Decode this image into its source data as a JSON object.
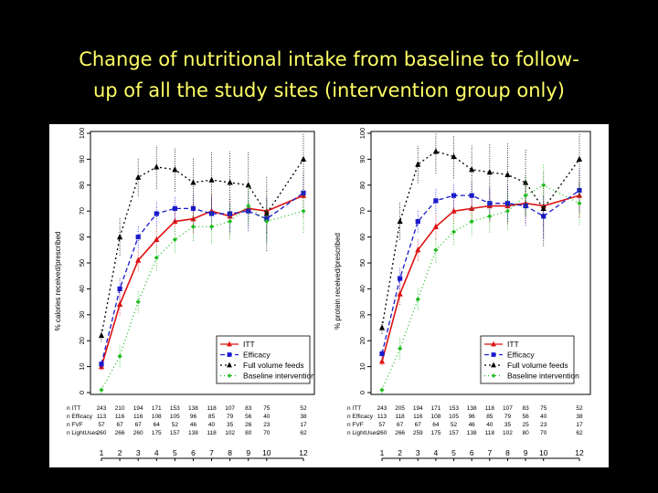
{
  "slide": {
    "title_line1": "Change of nutritional intake from baseline to follow-",
    "title_line2": "up of all the study sites (intervention group only)"
  },
  "colors": {
    "ITT": "#dd1111",
    "Efficacy": "#1a1acc",
    "Full volume feeds": "#000000",
    "Baseline intervention": "#22bb22"
  },
  "chart_data": [
    {
      "type": "line",
      "ylabel": "% calories received/prescribed",
      "ylim": [
        0,
        100
      ],
      "yticks": [
        "0",
        "10",
        "20",
        "30",
        "40",
        "50",
        "60",
        "70",
        "80",
        "90",
        "100"
      ],
      "x": [
        1,
        2,
        3,
        4,
        5,
        6,
        7,
        8,
        9,
        10,
        12
      ],
      "xtick_labels": [
        "1",
        "2",
        "3",
        "4",
        "5",
        "6",
        "7",
        "8",
        "9",
        "10",
        "12"
      ],
      "legend": [
        "ITT",
        "Efficacy",
        "Full volume feeds",
        "Baseline intervention"
      ],
      "series": [
        {
          "name": "ITT",
          "values": [
            10,
            34,
            51,
            59,
            66,
            67,
            70,
            68,
            71,
            70,
            76
          ]
        },
        {
          "name": "Efficacy",
          "values": [
            11,
            40,
            60,
            69,
            71,
            71,
            69,
            69,
            70,
            67,
            77
          ]
        },
        {
          "name": "Full volume feeds",
          "values": [
            22,
            60,
            83,
            87,
            86,
            81,
            82,
            81,
            80,
            69,
            90
          ]
        },
        {
          "name": "Baseline intervention",
          "values": [
            1,
            14,
            35,
            52,
            59,
            64,
            64,
            66,
            72,
            66,
            70
          ]
        }
      ],
      "counts_rows": [
        {
          "label": "n ITT",
          "values": [
            "243",
            "210",
            "194",
            "171",
            "153",
            "138",
            "118",
            "107",
            "83",
            "75",
            "52"
          ]
        },
        {
          "label": "n Efficacy",
          "values": [
            "113",
            "116",
            "116",
            "108",
            "105",
            "96",
            "85",
            "79",
            "56",
            "40",
            "38"
          ]
        },
        {
          "label": "n FVF",
          "values": [
            "57",
            "67",
            "67",
            "64",
            "52",
            "46",
            "40",
            "35",
            "26",
            "23",
            "17"
          ]
        },
        {
          "label": "n LightUses",
          "values": [
            "260",
            "266",
            "260",
            "175",
            "157",
            "138",
            "118",
            "102",
            "80",
            "70",
            "62"
          ]
        }
      ]
    },
    {
      "type": "line",
      "ylabel": "% protein received/prescribed",
      "ylim": [
        0,
        100
      ],
      "yticks": [
        "0",
        "10",
        "20",
        "30",
        "40",
        "50",
        "60",
        "70",
        "80",
        "90",
        "100"
      ],
      "x": [
        1,
        2,
        3,
        4,
        5,
        6,
        7,
        8,
        9,
        10,
        12
      ],
      "xtick_labels": [
        "1",
        "2",
        "3",
        "4",
        "5",
        "6",
        "7",
        "8",
        "9",
        "10",
        "12"
      ],
      "legend": [
        "ITT",
        "Efficacy",
        "Full volume feeds",
        "Baseline intervention"
      ],
      "series": [
        {
          "name": "ITT",
          "values": [
            12,
            38,
            55,
            64,
            70,
            71,
            72,
            72,
            73,
            72,
            76
          ]
        },
        {
          "name": "Efficacy",
          "values": [
            15,
            44,
            66,
            74,
            76,
            76,
            73,
            73,
            72,
            68,
            78
          ]
        },
        {
          "name": "Full volume feeds",
          "values": [
            25,
            66,
            88,
            93,
            91,
            86,
            85,
            84,
            81,
            71,
            90
          ]
        },
        {
          "name": "Baseline intervention",
          "values": [
            1,
            17,
            36,
            55,
            62,
            66,
            68,
            70,
            76,
            80,
            73
          ]
        }
      ],
      "counts_rows": [
        {
          "label": "n ITT",
          "values": [
            "243",
            "205",
            "194",
            "171",
            "153",
            "138",
            "118",
            "107",
            "83",
            "75",
            "52"
          ]
        },
        {
          "label": "n Efficacy",
          "values": [
            "113",
            "118",
            "116",
            "108",
            "105",
            "96",
            "85",
            "79",
            "56",
            "40",
            "38"
          ]
        },
        {
          "label": "n FVF",
          "values": [
            "57",
            "67",
            "67",
            "64",
            "52",
            "46",
            "40",
            "35",
            "25",
            "23",
            "17"
          ]
        },
        {
          "label": "n LightUses",
          "values": [
            "260",
            "266",
            "259",
            "175",
            "157",
            "138",
            "118",
            "102",
            "80",
            "70",
            "62"
          ]
        }
      ]
    }
  ]
}
